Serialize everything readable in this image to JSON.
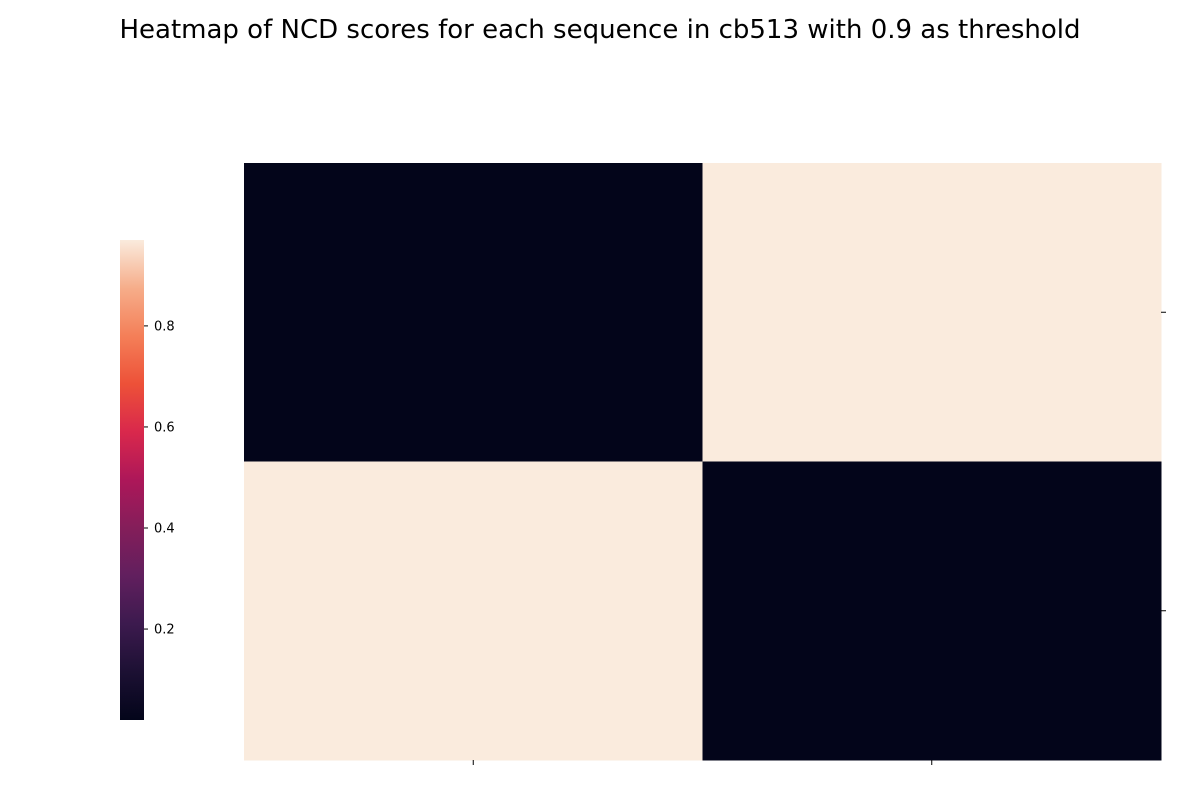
{
  "chart_data": {
    "type": "heatmap",
    "title": "Heatmap of NCD scores for each sequence in cb513 with 0.9 as threshold",
    "xlabel": "",
    "ylabel": "",
    "x_tick_labels": [
      "",
      ""
    ],
    "y_tick_labels": [
      "",
      ""
    ],
    "values": [
      [
        0.02,
        0.97
      ],
      [
        0.97,
        0.02
      ]
    ],
    "colorbar": {
      "min": 0.02,
      "max": 0.97,
      "ticks": [
        0.2,
        0.4,
        0.6,
        0.8
      ],
      "tick_labels": [
        "0.2",
        "0.4",
        "0.6",
        "0.8"
      ],
      "colormap": "rocket",
      "placement": "left"
    },
    "grid": false
  }
}
